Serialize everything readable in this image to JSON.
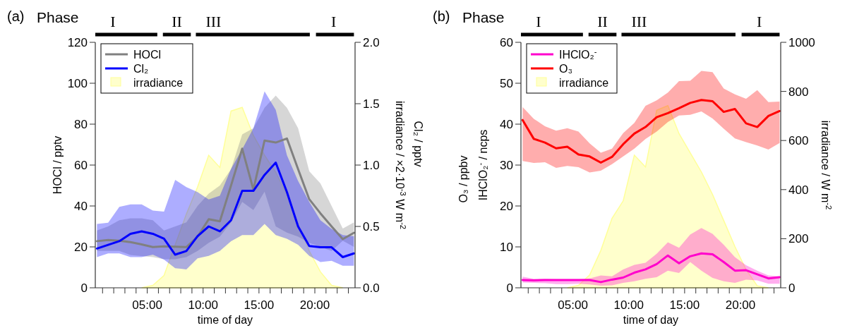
{
  "chart_data": [
    {
      "type": "line",
      "title": "(a)",
      "xlabel": "time of day",
      "ylabel": "HOCl / pptv",
      "y2label": "irradiance / ×2·10$^{-3}$ W m$^{-2}$",
      "annotations": [
        "Phase",
        "I",
        "II",
        "III",
        "I",
        "Cl₂ / pptv"
      ],
      "x": [
        0.5,
        1.5,
        2.5,
        3.5,
        4.5,
        5.5,
        6.5,
        7.5,
        8.5,
        9.5,
        10.5,
        11.5,
        12.5,
        13.5,
        14.5,
        15.5,
        16.5,
        17.5,
        18.5,
        19.5,
        20.5,
        21.5,
        22.5,
        23.5
      ],
      "xlim": [
        0.35,
        23.6
      ],
      "xticks": [
        {
          "value": 1,
          "label": null
        },
        {
          "value": 2,
          "label": null
        },
        {
          "value": 3,
          "label": null
        },
        {
          "value": 4,
          "label": null
        },
        {
          "value": 5,
          "label": "05:00"
        },
        {
          "value": 6,
          "label": null
        },
        {
          "value": 7,
          "label": null
        },
        {
          "value": 8,
          "label": null
        },
        {
          "value": 9,
          "label": null
        },
        {
          "value": 10,
          "label": "10:00"
        },
        {
          "value": 11,
          "label": null
        },
        {
          "value": 12,
          "label": null
        },
        {
          "value": 13,
          "label": null
        },
        {
          "value": 14,
          "label": null
        },
        {
          "value": 15,
          "label": "15:00"
        },
        {
          "value": 16,
          "label": null
        },
        {
          "value": 17,
          "label": null
        },
        {
          "value": 18,
          "label": null
        },
        {
          "value": 19,
          "label": null
        },
        {
          "value": 20,
          "label": "20:00"
        },
        {
          "value": 21,
          "label": null
        },
        {
          "value": 22,
          "label": null
        },
        {
          "value": 23,
          "label": null
        }
      ],
      "ylim": [
        0,
        120
      ],
      "yticks": [
        0,
        20,
        40,
        60,
        80,
        100,
        120
      ],
      "y2lim": [
        0,
        2
      ],
      "y2ticks": [
        {
          "value": 0,
          "label": "0.0"
        },
        0.5,
        {
          "value": 1,
          "label": "1.0"
        },
        1.5,
        {
          "value": 2,
          "label": "2.0"
        }
      ],
      "legend": "top left",
      "series": [
        {
          "name": "HOCl",
          "type": "line",
          "color": "#808080",
          "values": [
            22.8,
            23.4,
            23,
            22.3,
            21.2,
            19.9,
            20.3,
            20.1,
            19.9,
            25,
            33.5,
            32.5,
            50,
            68,
            48,
            72,
            71,
            73,
            58,
            43.3,
            36.4,
            30,
            23.8,
            26.9
          ],
          "lower": [
            18,
            18,
            18,
            16,
            15.5,
            15,
            14,
            14,
            15,
            18,
            22,
            25,
            32,
            42,
            38,
            47,
            30,
            27,
            25,
            22,
            20,
            18,
            23,
            20
          ],
          "upper": [
            28,
            30,
            33,
            34,
            34,
            33,
            28,
            30,
            32,
            40,
            46,
            50,
            58,
            75,
            78,
            88,
            94,
            88,
            78,
            57,
            51,
            40,
            29,
            32
          ]
        },
        {
          "name": "Cl₂",
          "type": "line",
          "axis": "y2",
          "color": "#0000ff",
          "values": [
            0.32,
            0.35,
            0.38,
            0.44,
            0.46,
            0.44,
            0.4,
            0.27,
            0.3,
            0.42,
            0.5,
            0.46,
            0.55,
            0.79,
            0.79,
            0.92,
            1.02,
            0.78,
            0.5,
            0.34,
            0.33,
            0.33,
            0.25,
            0.28
          ],
          "lower": [
            0.25,
            0.28,
            0.28,
            0.25,
            0.25,
            0.27,
            0.23,
            0.16,
            0.15,
            0.24,
            0.26,
            0.3,
            0.38,
            0.43,
            0.43,
            0.52,
            0.43,
            0.4,
            0.35,
            0.26,
            0.21,
            0.22,
            0.18,
            0.18
          ],
          "upper": [
            0.52,
            0.53,
            0.66,
            0.68,
            0.68,
            0.63,
            0.62,
            0.88,
            0.82,
            0.78,
            0.72,
            0.75,
            0.97,
            1.13,
            1.3,
            1.6,
            1.45,
            1.08,
            0.87,
            0.7,
            0.55,
            0.48,
            0.43,
            0.42
          ]
        },
        {
          "name": "irradiance",
          "type": "area",
          "axis": "y2",
          "color": "#ffff99",
          "values": [
            null,
            null,
            null,
            null,
            0,
            0.02,
            0.1,
            0.35,
            0.6,
            0.82,
            1.08,
            0.98,
            1.44,
            1.47,
            1.24,
            1.08,
            0.94,
            0.76,
            0.52,
            0.3,
            0.13,
            0.02,
            0,
            null
          ]
        }
      ]
    },
    {
      "type": "line",
      "title": "(b)",
      "xlabel": "time of day",
      "ylabel": "IHClO₂$^{-}$ / ncps",
      "y2label": "irradiance / W m$^{-2}$",
      "annotations": [
        "Phase",
        "I",
        "II",
        "III",
        "I",
        "O₃ / ppbv"
      ],
      "x": [
        0.5,
        1.5,
        2.5,
        3.5,
        4.5,
        5.5,
        6.5,
        7.5,
        8.5,
        9.5,
        10.5,
        11.5,
        12.5,
        13.5,
        14.5,
        15.5,
        16.5,
        17.5,
        18.5,
        19.5,
        20.5,
        21.5,
        22.5,
        23.5
      ],
      "xlim": [
        0.35,
        23.6
      ],
      "xticks": [
        {
          "value": 1,
          "label": null
        },
        {
          "value": 2,
          "label": null
        },
        {
          "value": 3,
          "label": null
        },
        {
          "value": 4,
          "label": null
        },
        {
          "value": 5,
          "label": "05:00"
        },
        {
          "value": 6,
          "label": null
        },
        {
          "value": 7,
          "label": null
        },
        {
          "value": 8,
          "label": null
        },
        {
          "value": 9,
          "label": null
        },
        {
          "value": 10,
          "label": "10:00"
        },
        {
          "value": 11,
          "label": null
        },
        {
          "value": 12,
          "label": null
        },
        {
          "value": 13,
          "label": null
        },
        {
          "value": 14,
          "label": null
        },
        {
          "value": 15,
          "label": "15:00"
        },
        {
          "value": 16,
          "label": null
        },
        {
          "value": 17,
          "label": null
        },
        {
          "value": 18,
          "label": null
        },
        {
          "value": 19,
          "label": null
        },
        {
          "value": 20,
          "label": "20:00"
        },
        {
          "value": 21,
          "label": null
        },
        {
          "value": 22,
          "label": null
        },
        {
          "value": 23,
          "label": null
        }
      ],
      "ylim": [
        0,
        60
      ],
      "yticks": [
        0,
        10,
        20,
        30,
        40,
        50,
        60
      ],
      "y2lim": [
        0,
        1000
      ],
      "y2ticks": [
        0,
        200,
        400,
        600,
        800,
        1000
      ],
      "legend": "top left",
      "series": [
        {
          "name": "IHClO₂$^{-}$",
          "type": "line",
          "color": "#ff00cc",
          "values": [
            1.9,
            1.8,
            1.9,
            1.9,
            1.9,
            1.9,
            1.9,
            1.4,
            2,
            2.5,
            3.7,
            4.5,
            5.8,
            7.9,
            6,
            7.7,
            8.4,
            8.2,
            6.3,
            4.2,
            4.3,
            3.3,
            2.3,
            2.6
          ],
          "lower": [
            1.3,
            1.2,
            1.1,
            0.9,
            0.9,
            1,
            0.8,
            0.5,
            0.6,
            1.2,
            1.6,
            2.2,
            2.6,
            4.2,
            3.6,
            6.3,
            4.2,
            2.4,
            1.6,
            1.2,
            2,
            1.8,
            1,
            1
          ],
          "upper": [
            2.7,
            2.2,
            2.2,
            2.1,
            2.1,
            2.1,
            2.3,
            3,
            2.8,
            4.5,
            5.6,
            6.1,
            8.3,
            11.1,
            9.8,
            13,
            14.6,
            13.2,
            10.5,
            7.5,
            5.5,
            4.2,
            3,
            2.8
          ]
        },
        {
          "name": "O₃",
          "type": "line",
          "color": "#ff0000",
          "values": [
            41,
            36.4,
            35.5,
            34.1,
            34.5,
            32.6,
            32.1,
            30.6,
            32,
            35.1,
            37.7,
            39.3,
            41.7,
            42.7,
            43.9,
            45.2,
            45.9,
            45.6,
            43,
            43.7,
            40.2,
            39.3,
            42,
            43.2
          ],
          "lower": [
            31,
            30.5,
            30.7,
            29.3,
            29.8,
            29.5,
            28.2,
            28.6,
            30.2,
            32.1,
            34,
            36.4,
            38.2,
            40.5,
            42.1,
            42.3,
            43.1,
            41.4,
            38.9,
            36.5,
            35.6,
            34.8,
            33.8,
            35.4
          ],
          "upper": [
            44.2,
            41.3,
            39.5,
            38.4,
            39,
            38.2,
            35.3,
            33,
            34,
            37.8,
            40.3,
            44.5,
            45.8,
            47.7,
            50.5,
            50.6,
            53,
            52.7,
            48.7,
            47.3,
            46.2,
            48.3,
            45.4,
            45.5
          ]
        },
        {
          "name": "irradiance",
          "type": "area",
          "axis": "y2",
          "color": "#ffff99",
          "values": [
            null,
            null,
            null,
            null,
            0,
            10,
            52,
            152,
            283,
            354,
            540,
            492,
            723,
            742,
            628,
            550,
            472,
            380,
            274,
            168,
            74,
            8,
            0,
            null
          ]
        }
      ]
    }
  ]
}
